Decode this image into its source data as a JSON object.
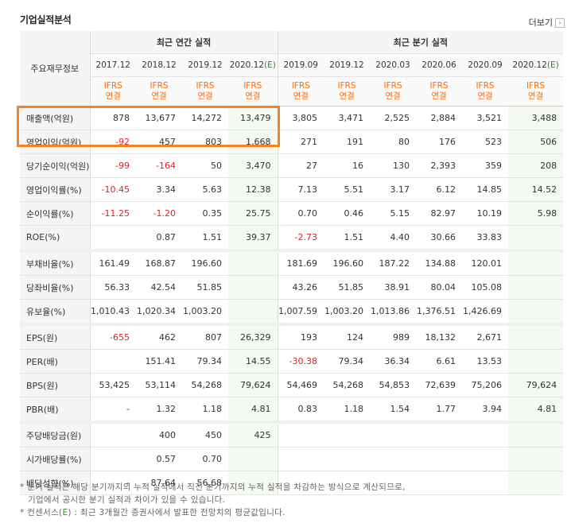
{
  "title": "기업실적분석",
  "more_label": "더보기",
  "more_arrow": "›",
  "corner_label": "주요재무정보",
  "groups": {
    "annual": "최근 연간 실적",
    "quarterly": "최근 분기 실적"
  },
  "periods": [
    {
      "label": "2017.12",
      "est": false
    },
    {
      "label": "2018.12",
      "est": false
    },
    {
      "label": "2019.12",
      "est": false
    },
    {
      "label": "2020.12",
      "est": true,
      "suffix": "(E)"
    },
    {
      "label": "2019.09",
      "est": false
    },
    {
      "label": "2019.12",
      "est": false
    },
    {
      "label": "2020.03",
      "est": false
    },
    {
      "label": "2020.06",
      "est": false
    },
    {
      "label": "2020.09",
      "est": false
    },
    {
      "label": "2020.12",
      "est": true,
      "suffix": "(E)"
    }
  ],
  "ifrs": {
    "line1": "IFRS",
    "line2": "연결"
  },
  "rows": [
    {
      "label": "매출액(억원)",
      "values": [
        "878",
        "13,677",
        "14,272",
        "13,479",
        "3,805",
        "3,471",
        "2,525",
        "2,884",
        "3,521",
        "3,488"
      ]
    },
    {
      "label": "영업이익(억원)",
      "values": [
        "-92",
        "457",
        "803",
        "1,668",
        "271",
        "191",
        "80",
        "176",
        "523",
        "506"
      ]
    },
    {
      "label": "당기순이익(억원)",
      "values": [
        "-99",
        "-164",
        "50",
        "3,470",
        "27",
        "16",
        "130",
        "2,393",
        "359",
        "208"
      ]
    },
    {
      "label": "영업이익률(%)",
      "values": [
        "-10.45",
        "3.34",
        "5.63",
        "12.38",
        "7.13",
        "5.51",
        "3.17",
        "6.12",
        "14.85",
        "14.52"
      ]
    },
    {
      "label": "순이익률(%)",
      "values": [
        "-11.25",
        "-1.20",
        "0.35",
        "25.75",
        "0.70",
        "0.46",
        "5.15",
        "82.97",
        "10.19",
        "5.98"
      ]
    },
    {
      "label": "ROE(%)",
      "values": [
        "",
        "0.87",
        "1.51",
        "39.37",
        "-2.73",
        "1.51",
        "4.40",
        "30.66",
        "33.83",
        ""
      ]
    },
    {
      "label": "부채비율(%)",
      "values": [
        "161.49",
        "168.87",
        "196.60",
        "",
        "181.69",
        "196.60",
        "187.22",
        "134.88",
        "120.01",
        ""
      ]
    },
    {
      "label": "당좌비율(%)",
      "values": [
        "56.33",
        "42.54",
        "51.85",
        "",
        "43.26",
        "51.85",
        "38.91",
        "80.04",
        "105.08",
        ""
      ]
    },
    {
      "label": "유보율(%)",
      "values": [
        "1,010.43",
        "1,020.34",
        "1,003.20",
        "",
        "1,007.59",
        "1,003.20",
        "1,013.86",
        "1,376.51",
        "1,426.69",
        ""
      ]
    },
    {
      "label": "EPS(원)",
      "values": [
        "-655",
        "462",
        "807",
        "26,329",
        "193",
        "124",
        "989",
        "18,132",
        "2,671",
        ""
      ]
    },
    {
      "label": "PER(배)",
      "values": [
        "",
        "151.41",
        "79.34",
        "14.55",
        "-30.38",
        "79.34",
        "36.34",
        "6.61",
        "13.53",
        ""
      ]
    },
    {
      "label": "BPS(원)",
      "values": [
        "53,425",
        "53,114",
        "54,268",
        "79,624",
        "54,469",
        "54,268",
        "54,853",
        "72,639",
        "75,206",
        "79,624"
      ]
    },
    {
      "label": "PBR(배)",
      "values": [
        "-",
        "1.32",
        "1.18",
        "4.81",
        "0.83",
        "1.18",
        "1.54",
        "1.77",
        "3.94",
        "4.81"
      ]
    },
    {
      "label": "주당배당금(원)",
      "values": [
        "",
        "400",
        "450",
        "425",
        "",
        "",
        "",
        "",
        "",
        ""
      ]
    },
    {
      "label": "시가배당률(%)",
      "values": [
        "",
        "0.57",
        "0.70",
        "",
        "",
        "",
        "",
        "",
        "",
        ""
      ]
    },
    {
      "label": "배당성향(%)",
      "values": [
        "-",
        "87.64",
        "56.68",
        "",
        "",
        "",
        "",
        "",
        "",
        ""
      ]
    }
  ],
  "notes": {
    "line1": "* 분기 실적은 해당 분기까지의 누적 실적에서 직전 분기까지의 누적 실적을 차감하는 방식으로 계산되므로,",
    "line2": "기업에서 공시한 분기 실적과 차이가 있을 수 있습니다.",
    "line3_prefix": "* 컨센서스(",
    "line3_e": "E",
    "line3_suffix": ") : 최근 3개월간 증권사에서 발표한 전망치의 평균값입니다."
  },
  "colors": {
    "negative": "#e41e1e",
    "ifrs": "#ff6a00",
    "estimate": "#2d8a2d",
    "highlight_box": "#f7821f"
  }
}
